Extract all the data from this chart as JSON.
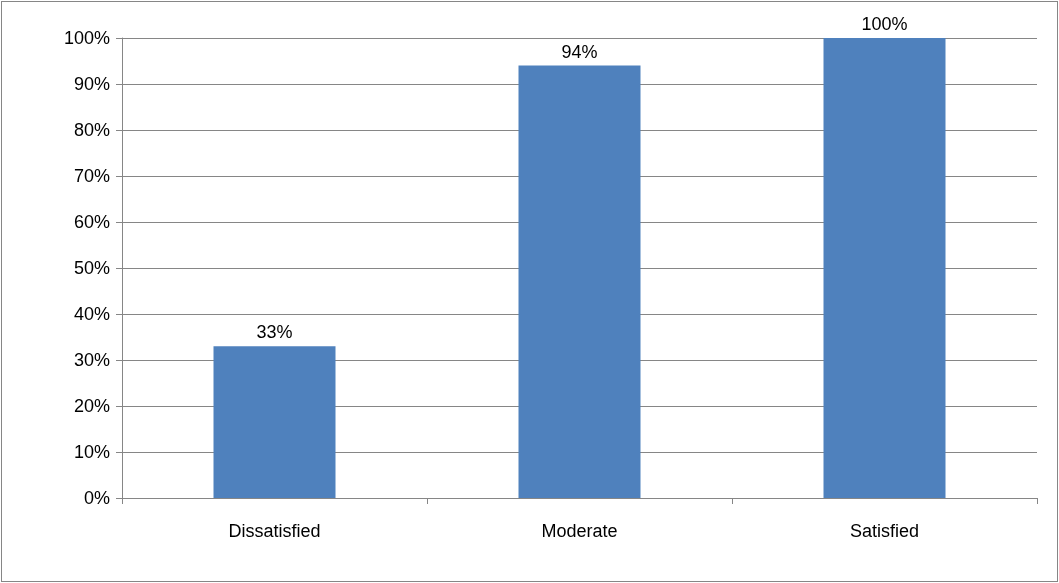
{
  "chart_data": {
    "type": "bar",
    "categories": [
      "Dissatisfied",
      "Moderate",
      "Satisfied"
    ],
    "values": [
      33,
      94,
      100
    ],
    "value_labels": [
      "33%",
      "94%",
      "100%"
    ],
    "color": "#4f81bd",
    "ylim": [
      0,
      100
    ],
    "yticks": [
      {
        "value": 0,
        "label": "0%"
      },
      {
        "value": 10,
        "label": "10%"
      },
      {
        "value": 20,
        "label": "20%"
      },
      {
        "value": 30,
        "label": "30%"
      },
      {
        "value": 40,
        "label": "40%"
      },
      {
        "value": 50,
        "label": "50%"
      },
      {
        "value": 60,
        "label": "60%"
      },
      {
        "value": 70,
        "label": "70%"
      },
      {
        "value": 80,
        "label": "80%"
      },
      {
        "value": 90,
        "label": "90%"
      },
      {
        "value": 100,
        "label": "100%"
      }
    ],
    "grid": "y"
  }
}
